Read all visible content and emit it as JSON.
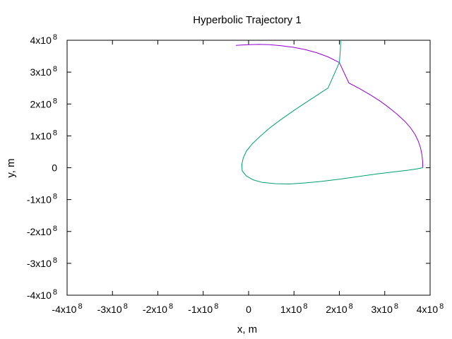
{
  "chart_data": {
    "type": "line",
    "title": "Hyperbolic Trajectory 1",
    "xlabel": "x, m",
    "ylabel": "y, m",
    "xlim": [
      -400000000,
      400000000
    ],
    "ylim": [
      -400000000,
      400000000
    ],
    "grid": false,
    "legend": "none",
    "x_ticks": [
      {
        "value": -400000000,
        "base": "-4x10",
        "exp": "8"
      },
      {
        "value": -300000000,
        "base": "-3x10",
        "exp": "8"
      },
      {
        "value": -200000000,
        "base": "-2x10",
        "exp": "8"
      },
      {
        "value": -100000000,
        "base": "-1x10",
        "exp": "8"
      },
      {
        "value": 0,
        "base": "0",
        "exp": ""
      },
      {
        "value": 100000000,
        "base": "1x10",
        "exp": "8"
      },
      {
        "value": 200000000,
        "base": "2x10",
        "exp": "8"
      },
      {
        "value": 300000000,
        "base": "3x10",
        "exp": "8"
      },
      {
        "value": 400000000,
        "base": "4x10",
        "exp": "8"
      }
    ],
    "y_ticks": [
      {
        "value": 400000000,
        "base": "4x10",
        "exp": "8"
      },
      {
        "value": 300000000,
        "base": "3x10",
        "exp": "8"
      },
      {
        "value": 200000000,
        "base": "2x10",
        "exp": "8"
      },
      {
        "value": 100000000,
        "base": "1x10",
        "exp": "8"
      },
      {
        "value": 0,
        "base": "0",
        "exp": ""
      },
      {
        "value": -100000000,
        "base": "-1x10",
        "exp": "8"
      },
      {
        "value": -200000000,
        "base": "-2x10",
        "exp": "8"
      },
      {
        "value": -300000000,
        "base": "-3x10",
        "exp": "8"
      },
      {
        "value": -400000000,
        "base": "-4x10",
        "exp": "8"
      }
    ],
    "series": [
      {
        "color": "#9400d3",
        "x": [
          384000000,
          383500000,
          382000000,
          379000000,
          374000000,
          367000000,
          357000000,
          344000000,
          328000000,
          310000000,
          290000000,
          268000000,
          245000000,
          221000000,
          200000000,
          175000000,
          150000000,
          124000000,
          98000000,
          72000000,
          46000000,
          22000000,
          2000000,
          -15000000,
          -28000000
        ],
        "y": [
          0,
          20000000,
          41000000,
          62000000,
          83000000,
          104000000,
          125000000,
          146000000,
          167000000,
          188000000,
          209000000,
          229000000,
          248000000,
          266000000,
          330000000,
          348000000,
          361000000,
          371000000,
          378000000,
          383000000,
          386000000,
          387000000,
          386000000,
          385000000,
          384000000
        ]
      },
      {
        "color": "#009e73",
        "x": [
          384000000,
          370000000,
          350000000,
          320000000,
          280000000,
          240000000,
          200000000,
          160000000,
          120000000,
          90000000,
          60000000,
          30000000,
          10000000,
          -5000000,
          -14000000,
          -15000000,
          -12000000,
          -5000000,
          8000000,
          25000000,
          45000000,
          70000000,
          100000000,
          135000000,
          175000000,
          200000000,
          202000000,
          203000000
        ],
        "y": [
          0,
          -4000000,
          -8000000,
          -13000000,
          -20000000,
          -28000000,
          -36000000,
          -43000000,
          -48000000,
          -51000000,
          -50000000,
          -46000000,
          -38000000,
          -26000000,
          -10000000,
          10000000,
          30000000,
          52000000,
          75000000,
          98000000,
          123000000,
          150000000,
          180000000,
          213000000,
          250000000,
          330000000,
          365000000,
          398000000
        ]
      }
    ]
  }
}
